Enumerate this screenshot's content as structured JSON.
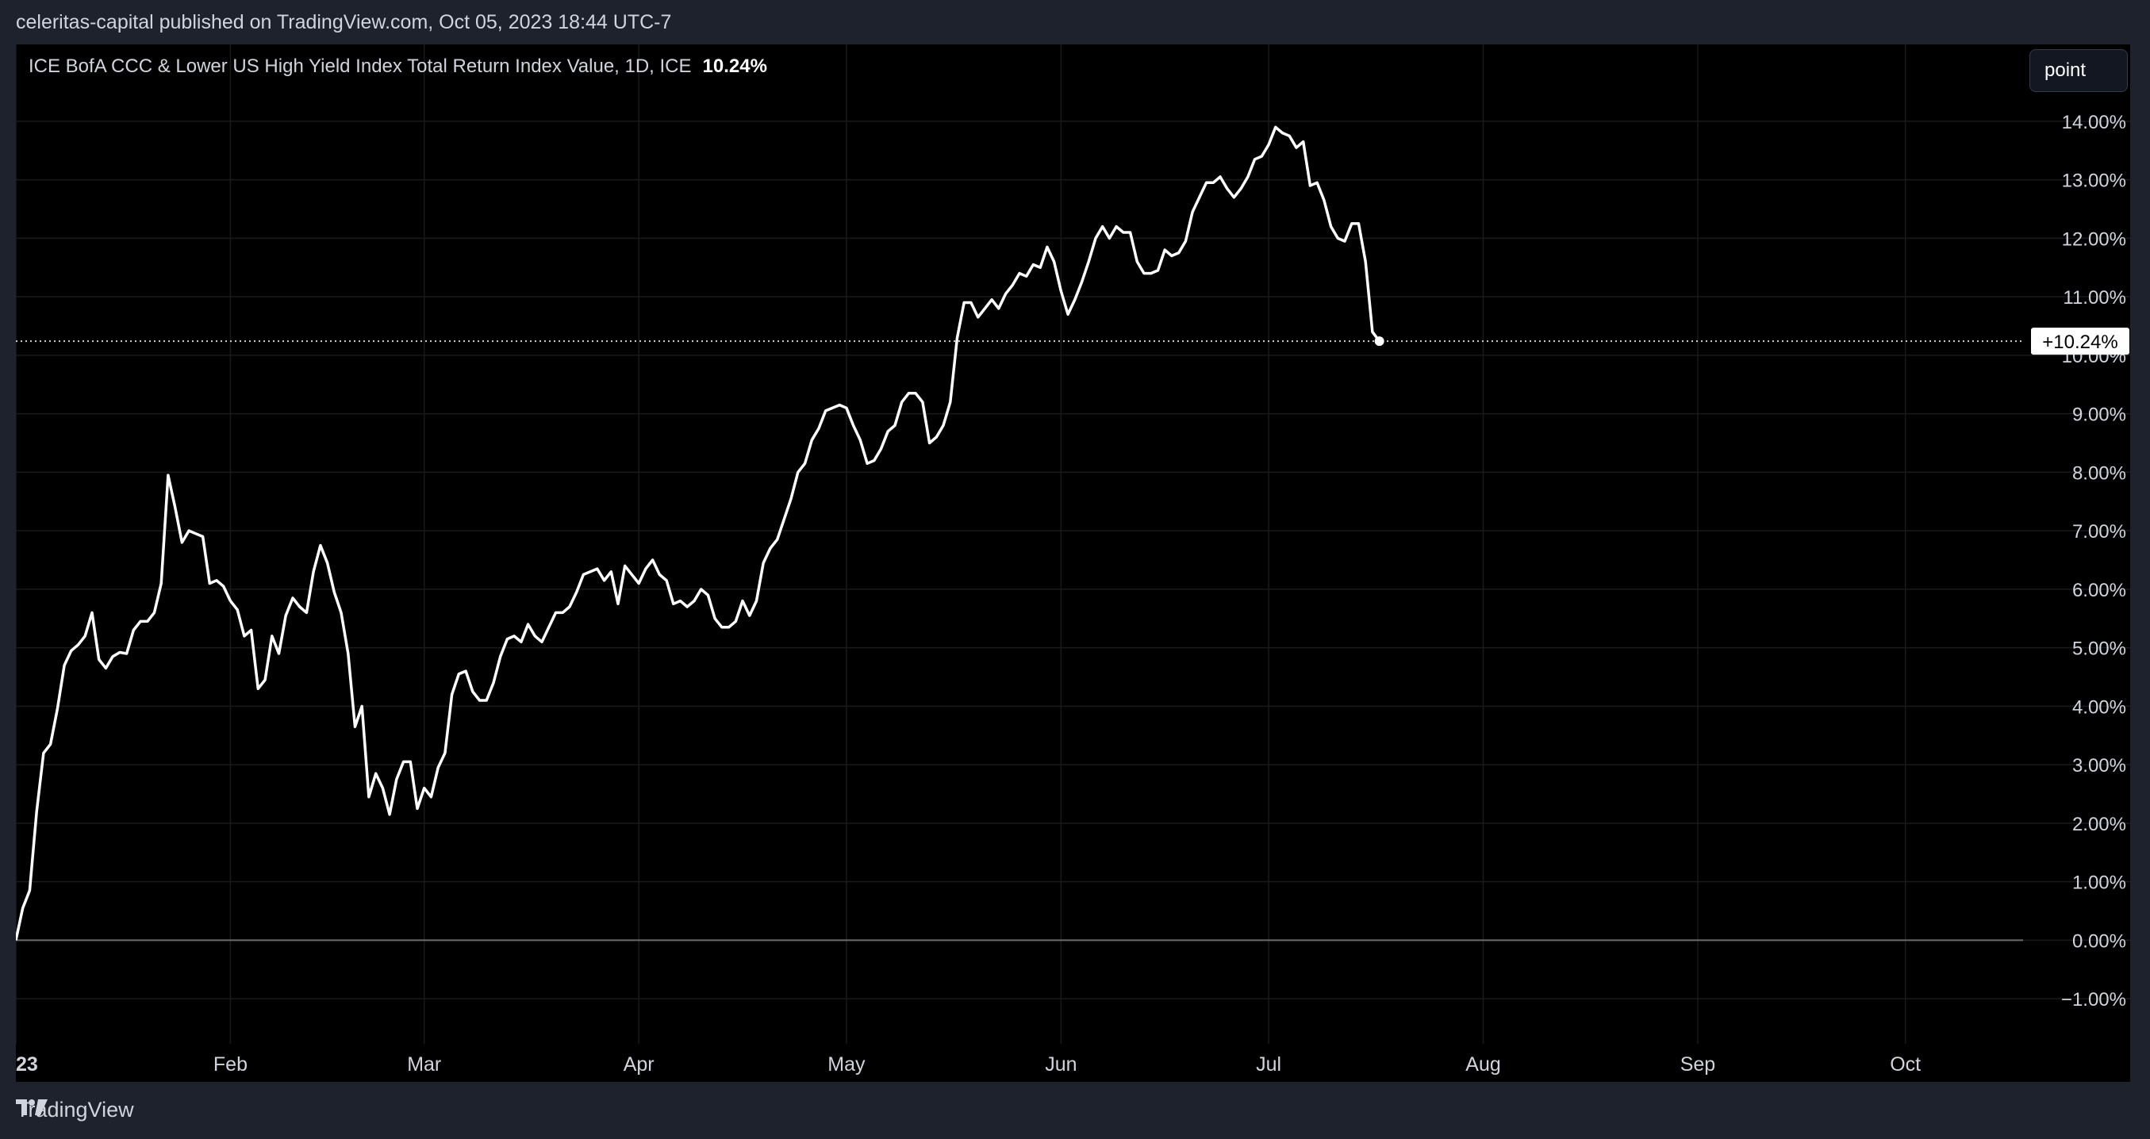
{
  "header": {
    "attribution": "celeritas-capital published on TradingView.com, Oct 05, 2023 18:44 UTC-7"
  },
  "legend": {
    "title": "ICE BofA CCC & Lower US High Yield Index Total Return Index Value, 1D, ICE",
    "value": "10.24%"
  },
  "controls": {
    "scale_button": "point"
  },
  "footer": {
    "brand": "TradingView"
  },
  "colors": {
    "background": "#000000",
    "frame": "#1e222d",
    "line": "#ffffff",
    "grid": "#1a1a1a",
    "zero_line": "#6b6b6b",
    "text": "#d1d4dc"
  },
  "chart_data": {
    "type": "line",
    "title": "ICE BofA CCC & Lower US High Yield Index Total Return Index Value, 1D, ICE",
    "xlabel": "",
    "ylabel": "",
    "ylim": [
      -1.5,
      14.5
    ],
    "y_ticks": [
      -1,
      0,
      1,
      2,
      3,
      4,
      5,
      6,
      7,
      8,
      9,
      10,
      11,
      12,
      13,
      14
    ],
    "y_tick_labels": [
      "−1.00%",
      "0.00%",
      "1.00%",
      "2.00%",
      "3.00%",
      "4.00%",
      "5.00%",
      "6.00%",
      "7.00%",
      "8.00%",
      "9.00%",
      "10.00%",
      "11.00%",
      "12.00%",
      "13.00%",
      "14.00%"
    ],
    "x_ticks": [
      {
        "date": "2023-01-01",
        "label": "23"
      },
      {
        "date": "2023-02-01",
        "label": "Feb"
      },
      {
        "date": "2023-03-01",
        "label": "Mar"
      },
      {
        "date": "2023-04-01",
        "label": "Apr"
      },
      {
        "date": "2023-05-01",
        "label": "May"
      },
      {
        "date": "2023-06-01",
        "label": "Jun"
      },
      {
        "date": "2023-07-01",
        "label": "Jul"
      },
      {
        "date": "2023-08-01",
        "label": "Aug"
      },
      {
        "date": "2023-09-01",
        "label": "Sep"
      },
      {
        "date": "2023-10-01",
        "label": "Oct"
      }
    ],
    "x_range": [
      "2023-01-01",
      "2023-10-18"
    ],
    "grid": true,
    "last_value_label": "+10.24%",
    "series": [
      {
        "points": [
          [
            "2023-01-01",
            0.0
          ],
          [
            "2023-01-02",
            0.55
          ],
          [
            "2023-01-03",
            0.85
          ],
          [
            "2023-01-04",
            2.2
          ],
          [
            "2023-01-05",
            3.2
          ],
          [
            "2023-01-06",
            3.35
          ],
          [
            "2023-01-07",
            3.95
          ],
          [
            "2023-01-08",
            4.7
          ],
          [
            "2023-01-09",
            4.95
          ],
          [
            "2023-01-10",
            5.05
          ],
          [
            "2023-01-11",
            5.2
          ],
          [
            "2023-01-12",
            5.6
          ],
          [
            "2023-01-13",
            4.8
          ],
          [
            "2023-01-14",
            4.65
          ],
          [
            "2023-01-15",
            4.85
          ],
          [
            "2023-01-16",
            4.92
          ],
          [
            "2023-01-17",
            4.9
          ],
          [
            "2023-01-18",
            5.3
          ],
          [
            "2023-01-19",
            5.45
          ],
          [
            "2023-01-20",
            5.45
          ],
          [
            "2023-01-21",
            5.6
          ],
          [
            "2023-01-22",
            6.1
          ],
          [
            "2023-01-23",
            7.95
          ],
          [
            "2023-01-24",
            7.4
          ],
          [
            "2023-01-25",
            6.8
          ],
          [
            "2023-01-26",
            7.0
          ],
          [
            "2023-01-27",
            6.95
          ],
          [
            "2023-01-28",
            6.9
          ],
          [
            "2023-01-29",
            6.1
          ],
          [
            "2023-01-30",
            6.15
          ],
          [
            "2023-01-31",
            6.05
          ],
          [
            "2023-02-01",
            5.8
          ],
          [
            "2023-02-02",
            5.65
          ],
          [
            "2023-02-03",
            5.2
          ],
          [
            "2023-02-04",
            5.3
          ],
          [
            "2023-02-05",
            4.3
          ],
          [
            "2023-02-06",
            4.45
          ],
          [
            "2023-02-07",
            5.2
          ],
          [
            "2023-02-08",
            4.9
          ],
          [
            "2023-02-09",
            5.55
          ],
          [
            "2023-02-10",
            5.85
          ],
          [
            "2023-02-11",
            5.7
          ],
          [
            "2023-02-12",
            5.6
          ],
          [
            "2023-02-13",
            6.3
          ],
          [
            "2023-02-14",
            6.75
          ],
          [
            "2023-02-15",
            6.45
          ],
          [
            "2023-02-16",
            5.95
          ],
          [
            "2023-02-17",
            5.6
          ],
          [
            "2023-02-18",
            4.9
          ],
          [
            "2023-02-19",
            3.65
          ],
          [
            "2023-02-20",
            4.0
          ],
          [
            "2023-02-21",
            2.45
          ],
          [
            "2023-02-22",
            2.85
          ],
          [
            "2023-02-23",
            2.6
          ],
          [
            "2023-02-24",
            2.15
          ],
          [
            "2023-02-25",
            2.75
          ],
          [
            "2023-02-26",
            3.05
          ],
          [
            "2023-02-27",
            3.05
          ],
          [
            "2023-02-28",
            2.25
          ],
          [
            "2023-03-01",
            2.6
          ],
          [
            "2023-03-02",
            2.45
          ],
          [
            "2023-03-03",
            2.95
          ],
          [
            "2023-03-04",
            3.2
          ],
          [
            "2023-03-05",
            4.2
          ],
          [
            "2023-03-06",
            4.55
          ],
          [
            "2023-03-07",
            4.6
          ],
          [
            "2023-03-08",
            4.25
          ],
          [
            "2023-03-09",
            4.1
          ],
          [
            "2023-03-10",
            4.1
          ],
          [
            "2023-03-11",
            4.4
          ],
          [
            "2023-03-12",
            4.85
          ],
          [
            "2023-03-13",
            5.15
          ],
          [
            "2023-03-14",
            5.2
          ],
          [
            "2023-03-15",
            5.1
          ],
          [
            "2023-03-16",
            5.4
          ],
          [
            "2023-03-17",
            5.2
          ],
          [
            "2023-03-18",
            5.1
          ],
          [
            "2023-03-19",
            5.35
          ],
          [
            "2023-03-20",
            5.6
          ],
          [
            "2023-03-21",
            5.6
          ],
          [
            "2023-03-22",
            5.7
          ],
          [
            "2023-03-23",
            5.95
          ],
          [
            "2023-03-24",
            6.25
          ],
          [
            "2023-03-25",
            6.3
          ],
          [
            "2023-03-26",
            6.35
          ],
          [
            "2023-03-27",
            6.15
          ],
          [
            "2023-03-28",
            6.3
          ],
          [
            "2023-03-29",
            5.75
          ],
          [
            "2023-03-30",
            6.4
          ],
          [
            "2023-03-31",
            6.25
          ],
          [
            "2023-04-01",
            6.1
          ],
          [
            "2023-04-02",
            6.35
          ],
          [
            "2023-04-03",
            6.5
          ],
          [
            "2023-04-04",
            6.25
          ],
          [
            "2023-04-05",
            6.15
          ],
          [
            "2023-04-06",
            5.75
          ],
          [
            "2023-04-07",
            5.8
          ],
          [
            "2023-04-08",
            5.7
          ],
          [
            "2023-04-09",
            5.8
          ],
          [
            "2023-04-10",
            6.0
          ],
          [
            "2023-04-11",
            5.9
          ],
          [
            "2023-04-12",
            5.5
          ],
          [
            "2023-04-13",
            5.35
          ],
          [
            "2023-04-14",
            5.35
          ],
          [
            "2023-04-15",
            5.45
          ],
          [
            "2023-04-16",
            5.8
          ],
          [
            "2023-04-17",
            5.55
          ],
          [
            "2023-04-18",
            5.8
          ],
          [
            "2023-04-19",
            6.45
          ],
          [
            "2023-04-20",
            6.7
          ],
          [
            "2023-04-21",
            6.85
          ],
          [
            "2023-04-22",
            7.2
          ],
          [
            "2023-04-23",
            7.55
          ],
          [
            "2023-04-24",
            8.0
          ],
          [
            "2023-04-25",
            8.15
          ],
          [
            "2023-04-26",
            8.55
          ],
          [
            "2023-04-27",
            8.75
          ],
          [
            "2023-04-28",
            9.05
          ],
          [
            "2023-04-29",
            9.1
          ],
          [
            "2023-04-30",
            9.15
          ],
          [
            "2023-05-01",
            9.1
          ],
          [
            "2023-05-02",
            8.8
          ],
          [
            "2023-05-03",
            8.55
          ],
          [
            "2023-05-04",
            8.15
          ],
          [
            "2023-05-05",
            8.2
          ],
          [
            "2023-05-06",
            8.4
          ],
          [
            "2023-05-07",
            8.7
          ],
          [
            "2023-05-08",
            8.8
          ],
          [
            "2023-05-09",
            9.2
          ],
          [
            "2023-05-10",
            9.35
          ],
          [
            "2023-05-11",
            9.35
          ],
          [
            "2023-05-12",
            9.2
          ],
          [
            "2023-05-13",
            8.5
          ],
          [
            "2023-05-14",
            8.6
          ],
          [
            "2023-05-15",
            8.8
          ],
          [
            "2023-05-16",
            9.2
          ],
          [
            "2023-05-17",
            10.3
          ],
          [
            "2023-05-18",
            10.9
          ],
          [
            "2023-05-19",
            10.9
          ],
          [
            "2023-05-20",
            10.65
          ],
          [
            "2023-05-21",
            10.8
          ],
          [
            "2023-05-22",
            10.95
          ],
          [
            "2023-05-23",
            10.8
          ],
          [
            "2023-05-24",
            11.05
          ],
          [
            "2023-05-25",
            11.2
          ],
          [
            "2023-05-26",
            11.4
          ],
          [
            "2023-05-27",
            11.35
          ],
          [
            "2023-05-28",
            11.55
          ],
          [
            "2023-05-29",
            11.5
          ],
          [
            "2023-05-30",
            11.85
          ],
          [
            "2023-05-31",
            11.6
          ],
          [
            "2023-06-01",
            11.1
          ],
          [
            "2023-06-02",
            10.7
          ],
          [
            "2023-06-03",
            10.95
          ],
          [
            "2023-06-04",
            11.25
          ],
          [
            "2023-06-05",
            11.6
          ],
          [
            "2023-06-06",
            12.0
          ],
          [
            "2023-06-07",
            12.2
          ],
          [
            "2023-06-08",
            12.0
          ],
          [
            "2023-06-09",
            12.2
          ],
          [
            "2023-06-10",
            12.1
          ],
          [
            "2023-06-11",
            12.1
          ],
          [
            "2023-06-12",
            11.6
          ],
          [
            "2023-06-13",
            11.4
          ],
          [
            "2023-06-14",
            11.4
          ],
          [
            "2023-06-15",
            11.45
          ],
          [
            "2023-06-16",
            11.8
          ],
          [
            "2023-06-17",
            11.7
          ],
          [
            "2023-06-18",
            11.75
          ],
          [
            "2023-06-19",
            11.95
          ],
          [
            "2023-06-20",
            12.45
          ],
          [
            "2023-06-21",
            12.7
          ],
          [
            "2023-06-22",
            12.95
          ],
          [
            "2023-06-23",
            12.95
          ],
          [
            "2023-06-24",
            13.05
          ],
          [
            "2023-06-25",
            12.85
          ],
          [
            "2023-06-26",
            12.7
          ],
          [
            "2023-06-27",
            12.85
          ],
          [
            "2023-06-28",
            13.05
          ],
          [
            "2023-06-29",
            13.35
          ],
          [
            "2023-06-30",
            13.4
          ],
          [
            "2023-07-01",
            13.6
          ],
          [
            "2023-07-02",
            13.9
          ],
          [
            "2023-07-03",
            13.8
          ],
          [
            "2023-07-04",
            13.75
          ],
          [
            "2023-07-05",
            13.55
          ],
          [
            "2023-07-06",
            13.65
          ],
          [
            "2023-07-07",
            12.9
          ],
          [
            "2023-07-08",
            12.95
          ],
          [
            "2023-07-09",
            12.65
          ],
          [
            "2023-07-10",
            12.2
          ],
          [
            "2023-07-11",
            12.0
          ],
          [
            "2023-07-12",
            11.95
          ],
          [
            "2023-07-13",
            12.25
          ],
          [
            "2023-07-14",
            12.25
          ],
          [
            "2023-07-15",
            11.6
          ],
          [
            "2023-07-16",
            10.4
          ],
          [
            "2023-07-17",
            10.24
          ]
        ]
      }
    ]
  }
}
